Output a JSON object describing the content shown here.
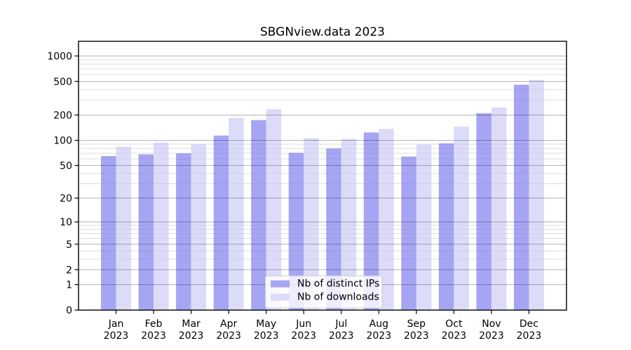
{
  "chart_data": {
    "type": "bar",
    "title": "SBGNview.data 2023",
    "categories": [
      "Jan",
      "Feb",
      "Mar",
      "Apr",
      "May",
      "Jun",
      "Jul",
      "Aug",
      "Sep",
      "Oct",
      "Nov",
      "Dec"
    ],
    "year_label": "2023",
    "series": [
      {
        "name": "Nb of distinct IPs",
        "color": "#a5a5f3",
        "values": [
          65,
          68,
          70,
          114,
          174,
          71,
          80,
          124,
          64,
          92,
          210,
          457
        ]
      },
      {
        "name": "Nb of downloads",
        "color": "#dcdcf9",
        "values": [
          84,
          94,
          90,
          185,
          235,
          106,
          104,
          137,
          89,
          146,
          246,
          522
        ]
      }
    ],
    "yscale": "log1p",
    "yticks": [
      0,
      1,
      2,
      5,
      10,
      20,
      50,
      100,
      200,
      500,
      1000
    ],
    "minor_yticks": [
      3,
      4,
      6,
      7,
      8,
      9,
      30,
      40,
      60,
      70,
      80,
      90,
      300,
      400,
      600,
      700,
      800,
      900
    ],
    "ylim": [
      0,
      1490
    ],
    "grid": true,
    "legend": {
      "position": "lower center"
    }
  }
}
